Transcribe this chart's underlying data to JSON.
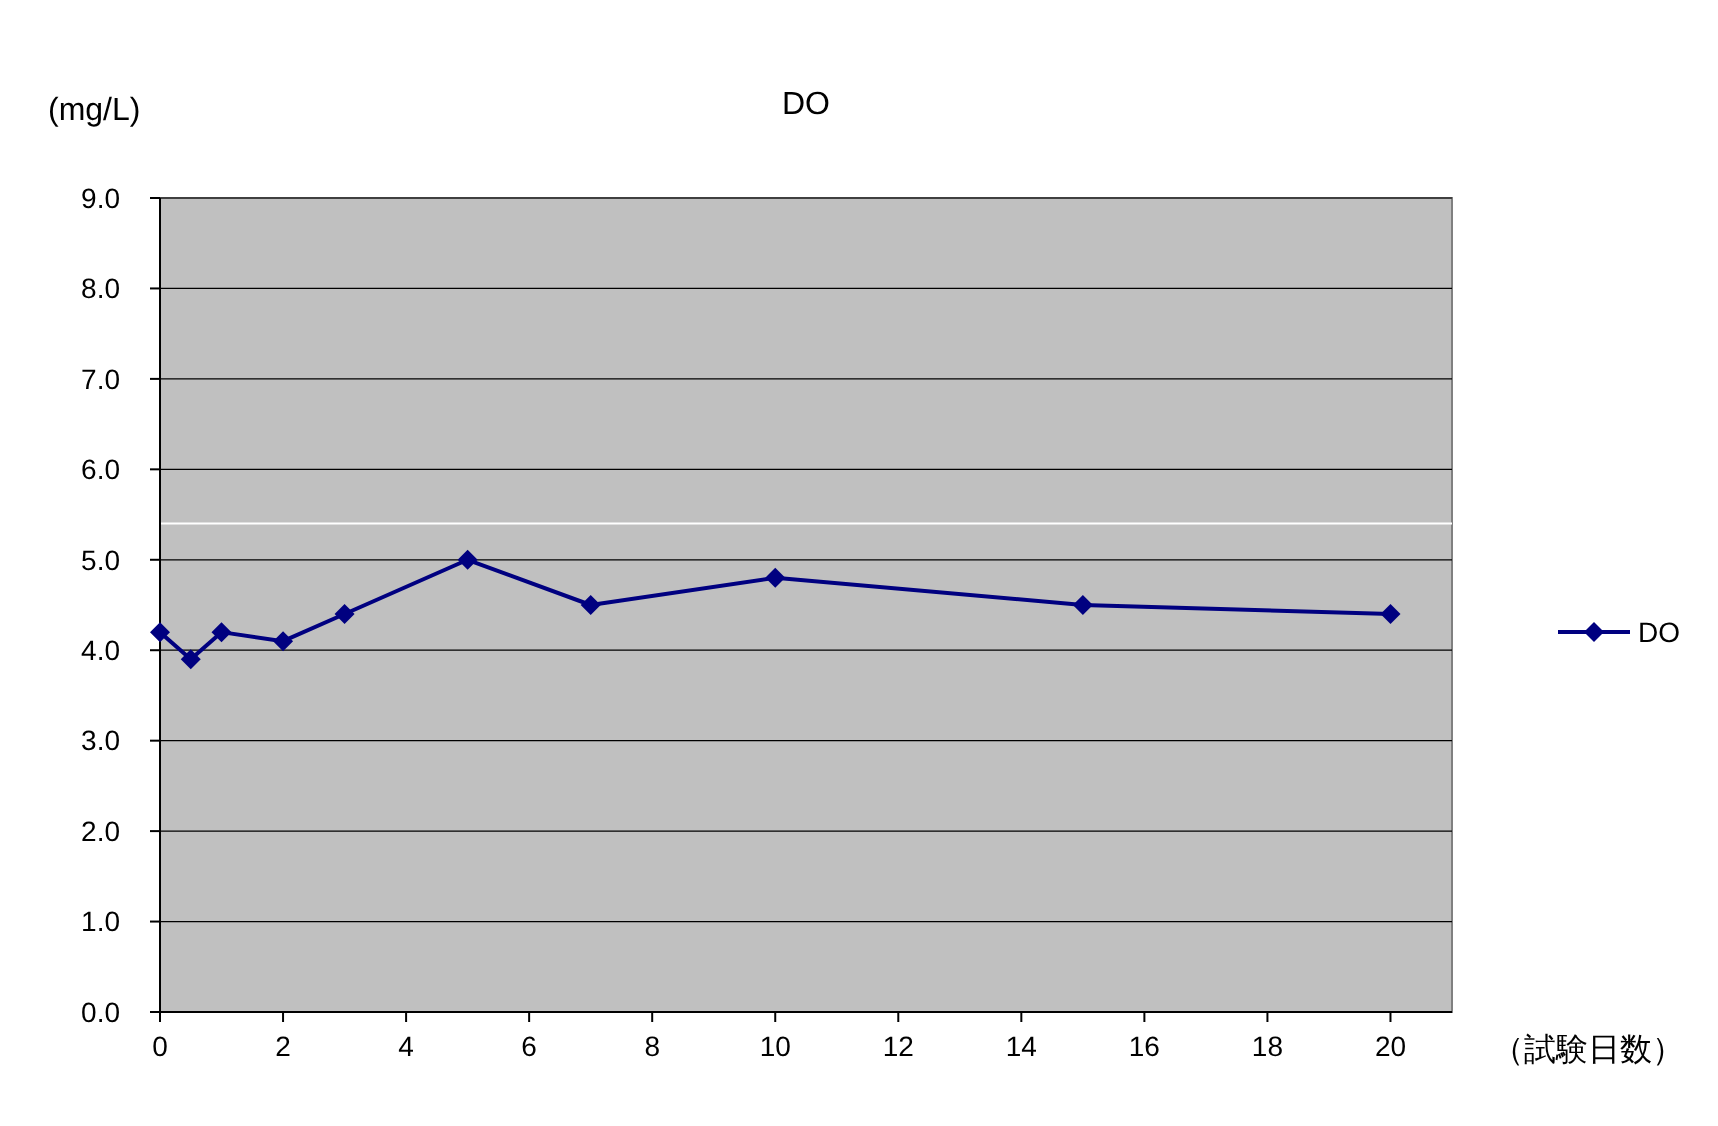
{
  "chart_data": {
    "type": "line",
    "title": "DO",
    "ylabel": "(mg/L)",
    "xlabel": "（試験日数）",
    "x": [
      0,
      0.5,
      1,
      2,
      3,
      5,
      7,
      10,
      15,
      20
    ],
    "series": [
      {
        "name": "DO",
        "color": "#000080",
        "values": [
          4.2,
          3.9,
          4.2,
          4.1,
          4.4,
          5.0,
          4.5,
          4.8,
          4.5,
          4.4
        ]
      }
    ],
    "xlim": [
      0,
      21
    ],
    "xticks": [
      0,
      2,
      4,
      6,
      8,
      10,
      12,
      14,
      16,
      18,
      20
    ],
    "ylim": [
      0,
      9
    ],
    "yticks": [
      {
        "value": 0,
        "label": "0.0"
      },
      {
        "value": 1,
        "label": "1.0"
      },
      {
        "value": 2,
        "label": "2.0"
      },
      {
        "value": 3,
        "label": "3.0"
      },
      {
        "value": 4,
        "label": "4.0"
      },
      {
        "value": 5,
        "label": "5.0"
      },
      {
        "value": 6,
        "label": "6.0"
      },
      {
        "value": 7,
        "label": "7.0"
      },
      {
        "value": 8,
        "label": "8.0"
      },
      {
        "value": 9,
        "label": "9.0"
      }
    ],
    "ref_lines": [
      {
        "axis": "y",
        "value": 5.4,
        "color": "#ffffff"
      }
    ],
    "grid": "y",
    "legend": "right",
    "marker": "diamond",
    "line_style": "solid"
  }
}
